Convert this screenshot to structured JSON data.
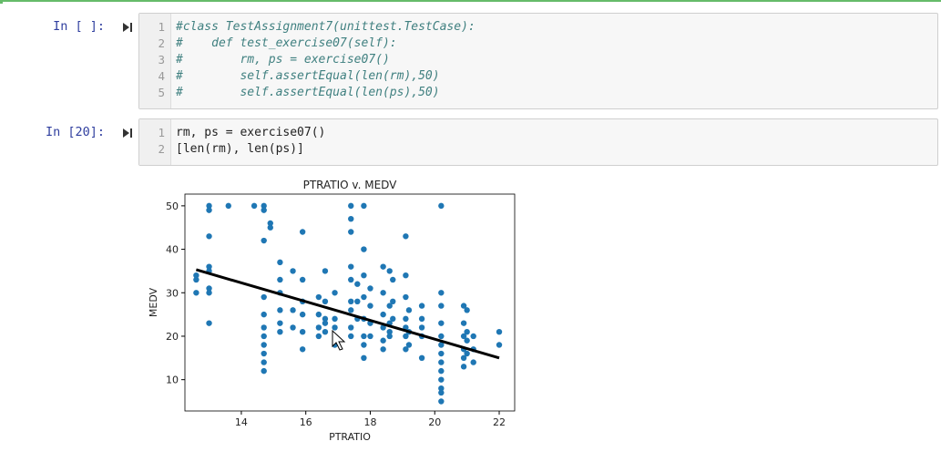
{
  "cells": [
    {
      "prompt": "In [ ]:",
      "line_numbers": [
        1,
        2,
        3,
        4,
        5
      ],
      "comment": true,
      "lines": [
        "#class TestAssignment7(unittest.TestCase):",
        "#    def test_exercise07(self):",
        "#        rm, ps = exercise07()",
        "#        self.assertEqual(len(rm),50)",
        "#        self.assertEqual(len(ps),50)"
      ]
    },
    {
      "prompt": "In [20]:",
      "line_numbers": [
        1,
        2
      ],
      "comment": false,
      "lines": [
        "rm, ps = exercise07()",
        "[len(rm), len(ps)]"
      ]
    }
  ],
  "chart_data": {
    "type": "scatter",
    "title": "PTRATIO v. MEDV",
    "x_label": "PTRATIO",
    "y_label": "MEDV",
    "xlim": [
      12.25,
      22.48
    ],
    "ylim": [
      2.8,
      52.7
    ],
    "xticks": [
      14,
      16,
      18,
      20,
      22
    ],
    "yticks": [
      10,
      20,
      30,
      40,
      50
    ],
    "series": [
      {
        "type": "scatter",
        "color": "#1f77b4",
        "x": [
          12.6,
          12.6,
          12.6,
          13.0,
          13.0,
          13.0,
          13.0,
          13.0,
          13.0,
          13.0,
          13.0,
          13.6,
          14.4,
          14.7,
          14.7,
          14.7,
          14.7,
          14.7,
          14.7,
          14.7,
          14.7,
          14.7,
          14.7,
          14.7,
          14.9,
          14.9,
          15.2,
          15.2,
          15.2,
          15.2,
          15.2,
          15.2,
          15.6,
          15.6,
          15.6,
          15.9,
          15.9,
          15.9,
          15.9,
          15.9,
          15.9,
          16.4,
          16.4,
          16.4,
          16.4,
          16.6,
          16.6,
          16.6,
          16.6,
          16.6,
          16.9,
          16.9,
          16.9,
          16.9,
          17.4,
          17.4,
          17.4,
          17.4,
          17.4,
          17.4,
          17.4,
          17.4,
          17.4,
          17.6,
          17.6,
          17.6,
          17.8,
          17.8,
          17.8,
          17.8,
          17.8,
          17.8,
          17.8,
          17.8,
          18.0,
          18.0,
          18.0,
          18.0,
          18.4,
          18.4,
          18.4,
          18.4,
          18.4,
          18.4,
          18.6,
          18.6,
          18.6,
          18.6,
          18.6,
          18.7,
          18.7,
          18.7,
          19.1,
          19.1,
          19.1,
          19.1,
          19.1,
          19.1,
          19.1,
          19.2,
          19.2,
          19.2,
          19.6,
          19.6,
          19.6,
          19.6,
          19.6,
          20.2,
          20.2,
          20.2,
          20.2,
          20.2,
          20.2,
          20.2,
          20.2,
          20.2,
          20.2,
          20.2,
          20.2,
          20.2,
          20.9,
          20.9,
          20.9,
          20.9,
          20.9,
          20.9,
          21.0,
          21.0,
          21.0,
          21.0,
          21.2,
          21.2,
          21.2,
          22.0,
          22.0
        ],
        "values": [
          30,
          33,
          34,
          50,
          49,
          43,
          36,
          35,
          31,
          30,
          23,
          50,
          50,
          50,
          49,
          42,
          29,
          25,
          22,
          20,
          18,
          16,
          14,
          12,
          46,
          45,
          37,
          33,
          30,
          26,
          23,
          21,
          35,
          26,
          22,
          44,
          33,
          28,
          25,
          21,
          17,
          29,
          25,
          22,
          20,
          35,
          28,
          24,
          23,
          21,
          30,
          24,
          22,
          18,
          50,
          47,
          44,
          36,
          33,
          28,
          26,
          22,
          20,
          32,
          28,
          24,
          50,
          40,
          34,
          29,
          24,
          20,
          18,
          15,
          31,
          27,
          23,
          20,
          36,
          30,
          25,
          22,
          19,
          17,
          35,
          27,
          23,
          21,
          20,
          33,
          28,
          24,
          43,
          34,
          29,
          24,
          22,
          20,
          17,
          26,
          21,
          18,
          27,
          24,
          22,
          20,
          15,
          50,
          30,
          27,
          23,
          20,
          18,
          16,
          14,
          12,
          10,
          8,
          7,
          5,
          27,
          23,
          20,
          17,
          15,
          13,
          26,
          21,
          19,
          16,
          20,
          17,
          14,
          21,
          18
        ]
      },
      {
        "type": "line",
        "color": "#000000",
        "x": [
          12.6,
          22.0
        ],
        "values": [
          35.3,
          15.0
        ]
      }
    ]
  }
}
